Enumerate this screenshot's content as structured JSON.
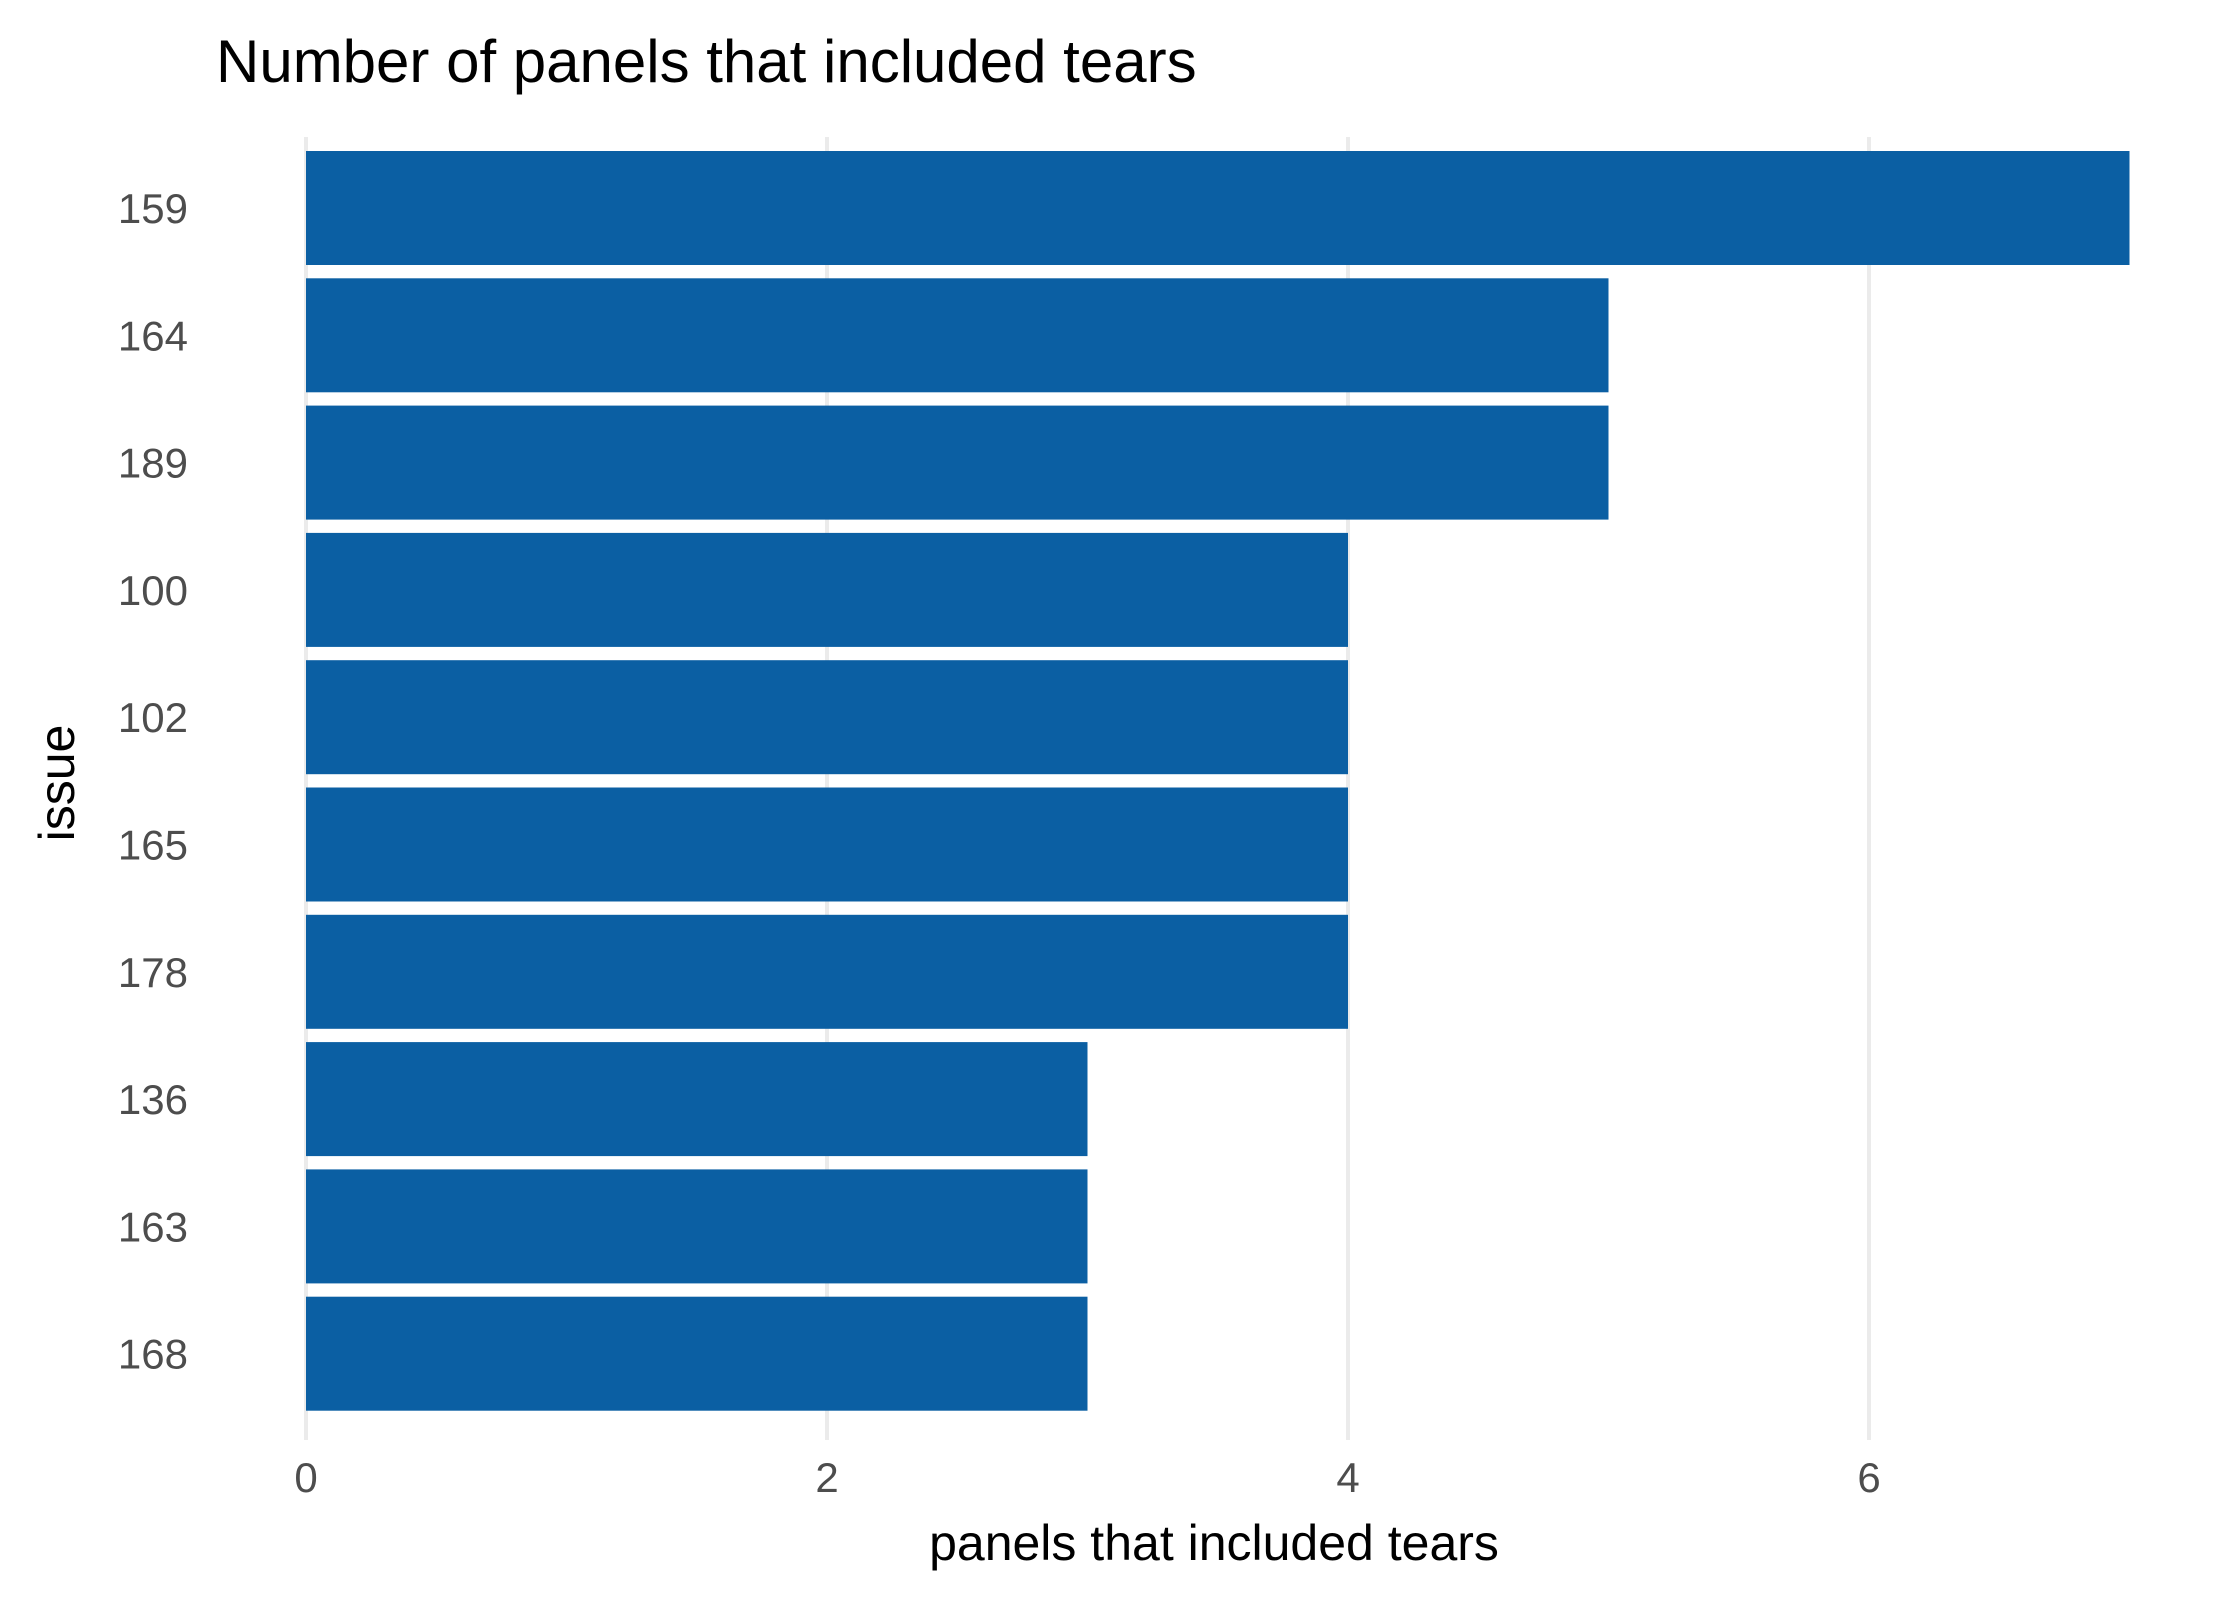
{
  "chart_data": {
    "type": "bar",
    "orientation": "horizontal",
    "title": "Number of panels that included tears",
    "xlabel": "panels that included tears",
    "ylabel": "issue",
    "categories": [
      "159",
      "164",
      "189",
      "100",
      "102",
      "165",
      "178",
      "136",
      "163",
      "168"
    ],
    "values": [
      7,
      5,
      5,
      4,
      4,
      4,
      4,
      3,
      3,
      3
    ],
    "xlim": [
      0,
      7
    ],
    "x_ticks": [
      "0",
      "2",
      "4",
      "6"
    ],
    "grid": true,
    "legend": "none",
    "bar_color": "#0b5fa3"
  }
}
